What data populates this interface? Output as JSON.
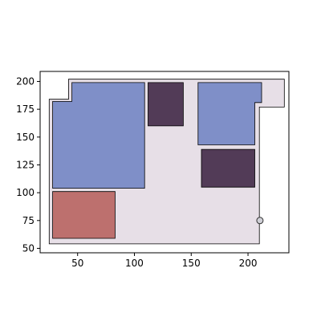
{
  "chart_data": {
    "type": "floor-plan",
    "title": "",
    "xlabel": "",
    "ylabel": "",
    "xlim": [
      17,
      236
    ],
    "ylim": [
      46,
      209
    ],
    "grid": false,
    "x_ticks": [
      50,
      100,
      150,
      200
    ],
    "y_ticks": [
      50,
      75,
      100,
      125,
      150,
      175,
      200
    ],
    "x_tick_labels": [
      "50",
      "100",
      "150",
      "200"
    ],
    "y_tick_labels": [
      "50",
      "75",
      "100",
      "125",
      "150",
      "175",
      "200"
    ],
    "outline": {
      "color": "#e7dfe7",
      "points": [
        [
          25,
          54
        ],
        [
          210,
          54
        ],
        [
          210,
          177
        ],
        [
          232,
          177
        ],
        [
          232,
          202
        ],
        [
          42,
          202
        ],
        [
          42,
          184
        ],
        [
          25,
          184
        ]
      ]
    },
    "rooms": [
      {
        "name": "room-large-left",
        "color": "#7f8fc8",
        "points": [
          [
            28,
            104
          ],
          [
            109,
            104
          ],
          [
            109,
            199
          ],
          [
            45,
            199
          ],
          [
            45,
            182
          ],
          [
            28,
            182
          ]
        ]
      },
      {
        "name": "room-top-middle",
        "color": "#523b57",
        "points": [
          [
            112,
            160
          ],
          [
            143,
            160
          ],
          [
            143,
            199
          ],
          [
            112,
            199
          ]
        ]
      },
      {
        "name": "room-top-right",
        "color": "#7f8fc8",
        "points": [
          [
            156,
            143
          ],
          [
            206,
            143
          ],
          [
            206,
            181
          ],
          [
            212,
            181
          ],
          [
            212,
            199
          ],
          [
            156,
            199
          ]
        ]
      },
      {
        "name": "room-mid-right",
        "color": "#523b57",
        "points": [
          [
            159,
            105
          ],
          [
            206,
            105
          ],
          [
            206,
            139
          ],
          [
            159,
            139
          ]
        ]
      },
      {
        "name": "room-bottom-left",
        "color": "#bd706e",
        "points": [
          [
            28,
            59
          ],
          [
            83,
            59
          ],
          [
            83,
            101
          ],
          [
            28,
            101
          ]
        ]
      }
    ],
    "markers": [
      {
        "name": "entry-point",
        "color": "#cfcfd6",
        "x": 210.5,
        "y": 75
      }
    ]
  }
}
